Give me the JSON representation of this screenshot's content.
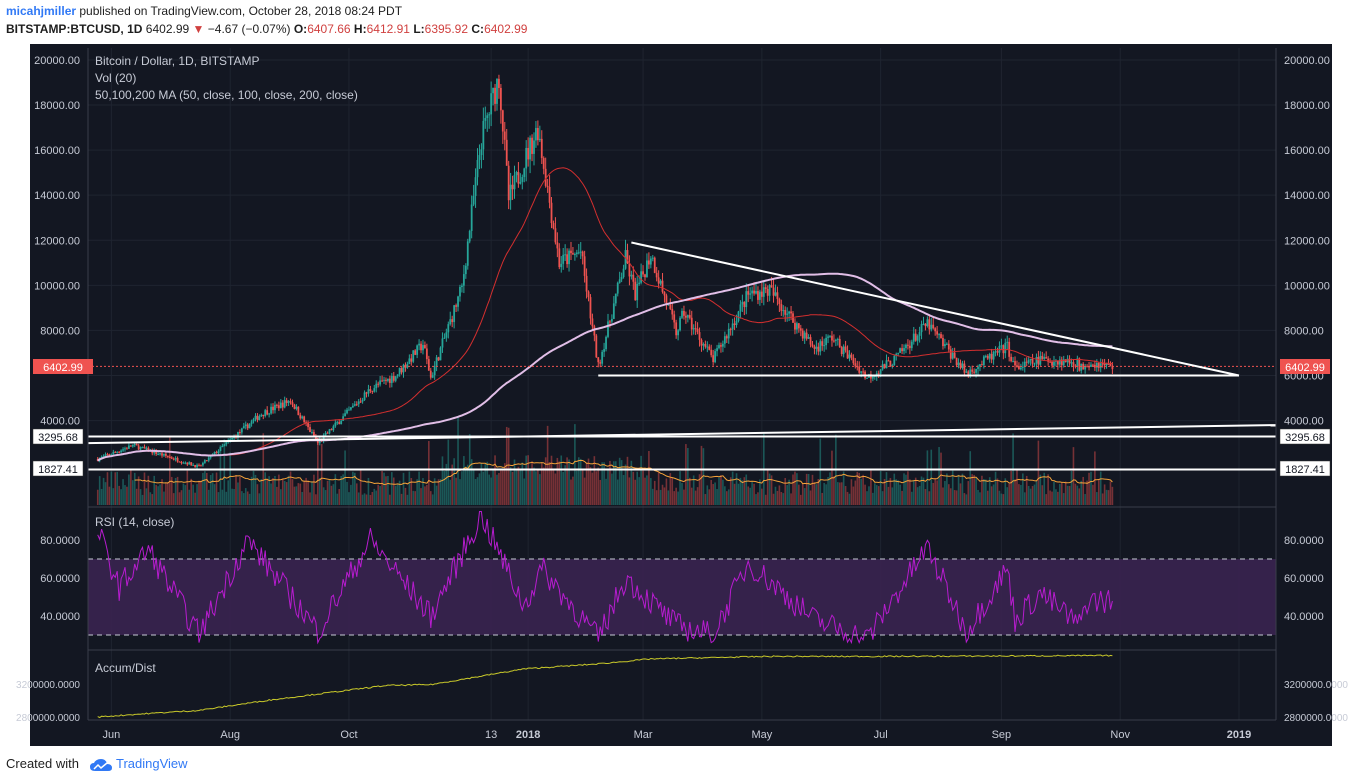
{
  "header": {
    "user": "micahjmiller",
    "published_text": "published on TradingView.com, October 28, 2018 08:24 PDT",
    "symbol": "BITSTAMP:BTCUSD, 1D",
    "last": "6402.99",
    "change": "−4.67 (−0.07%)",
    "o_label": "O:",
    "o": "6407.66",
    "h_label": "H:",
    "h": "6412.91",
    "l_label": "L:",
    "l": "6395.92",
    "c_label": "C:",
    "c": "6402.99"
  },
  "footer": {
    "created_with": "Created with",
    "brand": "TradingView"
  },
  "colors": {
    "background": "#131722",
    "up": "#26a69a",
    "down": "#ef5350",
    "ma50": "#d32f2f",
    "ma200": "#e1bee7",
    "rsi": "#b71ccf",
    "rsi_band": "#3a2450",
    "adl": "#c9c92a",
    "vol_ma": "#f5a33a",
    "trendline": "#ffffff"
  },
  "chart_data": [
    {
      "type": "candlestick",
      "title": "Bitcoin / Dollar, 1D, BITSTAMP",
      "indicators": [
        "Vol (20)",
        "50,100,200 MA (50, close, 100, close, 200, close)"
      ],
      "x_ticks": [
        "Jun",
        "Aug",
        "Oct",
        "13",
        "2018",
        "Mar",
        "May",
        "Jul",
        "Sep",
        "Nov",
        "2019"
      ],
      "y_ticks": [
        "20000.00",
        "18000.00",
        "16000.00",
        "14000.00",
        "12000.00",
        "10000.00",
        "8000.00",
        "6000.00",
        "4000.00"
      ],
      "ylim": [
        1200,
        20600
      ],
      "last_price_label": "6402.99",
      "level_labels": [
        "3295.68",
        "1827.41"
      ],
      "price_anchors": [
        {
          "date": "2017-05-25",
          "price": 2300
        },
        {
          "date": "2017-06-12",
          "price": 2900
        },
        {
          "date": "2017-07-16",
          "price": 1950
        },
        {
          "date": "2017-08-17",
          "price": 4300
        },
        {
          "date": "2017-09-01",
          "price": 4900
        },
        {
          "date": "2017-09-15",
          "price": 3000
        },
        {
          "date": "2017-10-12",
          "price": 5400
        },
        {
          "date": "2017-10-25",
          "price": 6000
        },
        {
          "date": "2017-11-08",
          "price": 7400
        },
        {
          "date": "2017-11-12",
          "price": 5900
        },
        {
          "date": "2017-11-28",
          "price": 9900
        },
        {
          "date": "2017-12-08",
          "price": 16500
        },
        {
          "date": "2017-12-17",
          "price": 19300
        },
        {
          "date": "2017-12-22",
          "price": 13800
        },
        {
          "date": "2018-01-06",
          "price": 17000
        },
        {
          "date": "2018-01-17",
          "price": 11000
        },
        {
          "date": "2018-01-28",
          "price": 11500
        },
        {
          "date": "2018-02-06",
          "price": 6400
        },
        {
          "date": "2018-02-20",
          "price": 11200
        },
        {
          "date": "2018-02-25",
          "price": 9600
        },
        {
          "date": "2018-03-05",
          "price": 11400
        },
        {
          "date": "2018-03-18",
          "price": 7900
        },
        {
          "date": "2018-03-22",
          "price": 8800
        },
        {
          "date": "2018-04-06",
          "price": 6700
        },
        {
          "date": "2018-04-24",
          "price": 9600
        },
        {
          "date": "2018-05-05",
          "price": 9800
        },
        {
          "date": "2018-05-28",
          "price": 7200
        },
        {
          "date": "2018-06-06",
          "price": 7700
        },
        {
          "date": "2018-06-24",
          "price": 5900
        },
        {
          "date": "2018-07-08",
          "price": 6700
        },
        {
          "date": "2018-07-25",
          "price": 8300
        },
        {
          "date": "2018-08-14",
          "price": 6100
        },
        {
          "date": "2018-09-04",
          "price": 7300
        },
        {
          "date": "2018-09-08",
          "price": 6300
        },
        {
          "date": "2018-09-21",
          "price": 6700
        },
        {
          "date": "2018-10-10",
          "price": 6600
        },
        {
          "date": "2018-10-11",
          "price": 6250
        },
        {
          "date": "2018-10-15",
          "price": 6600
        },
        {
          "date": "2018-10-28",
          "price": 6403
        }
      ],
      "trendlines": [
        {
          "from": {
            "date": "2018-02-23",
            "price": 11900
          },
          "to": {
            "date": "2019-01-01",
            "price": 6000
          }
        },
        {
          "from": {
            "date": "2018-02-06",
            "price": 6000
          },
          "to": {
            "date": "2019-01-01",
            "price": 6000
          }
        },
        {
          "from": {
            "date": "2017-05-20",
            "price": 3000
          },
          "to": {
            "date": "2019-01-20",
            "price": 3800
          }
        },
        {
          "from": {
            "date": "2017-05-20",
            "price": 3295.68
          },
          "to": {
            "date": "2019-01-20",
            "price": 3295.68
          }
        },
        {
          "from": {
            "date": "2017-05-20",
            "price": 1827.41
          },
          "to": {
            "date": "2019-01-20",
            "price": 1827.41
          }
        }
      ]
    },
    {
      "type": "line",
      "title": "RSI (14, close)",
      "y_ticks": [
        "80.0000",
        "60.0000",
        "40.0000"
      ],
      "ylim": [
        25,
        98
      ],
      "band": [
        30,
        70
      ],
      "anchors": [
        {
          "date": "2017-05-25",
          "v": 85
        },
        {
          "date": "2017-06-05",
          "v": 55
        },
        {
          "date": "2017-06-20",
          "v": 75
        },
        {
          "date": "2017-07-16",
          "v": 30
        },
        {
          "date": "2017-08-10",
          "v": 80
        },
        {
          "date": "2017-09-15",
          "v": 32
        },
        {
          "date": "2017-10-12",
          "v": 80
        },
        {
          "date": "2017-11-12",
          "v": 40
        },
        {
          "date": "2017-12-08",
          "v": 93
        },
        {
          "date": "2017-12-30",
          "v": 45
        },
        {
          "date": "2018-01-08",
          "v": 65
        },
        {
          "date": "2018-02-06",
          "v": 28
        },
        {
          "date": "2018-02-20",
          "v": 60
        },
        {
          "date": "2018-03-18",
          "v": 35
        },
        {
          "date": "2018-04-06",
          "v": 30
        },
        {
          "date": "2018-04-24",
          "v": 68
        },
        {
          "date": "2018-05-28",
          "v": 38
        },
        {
          "date": "2018-06-24",
          "v": 28
        },
        {
          "date": "2018-07-25",
          "v": 76
        },
        {
          "date": "2018-08-14",
          "v": 32
        },
        {
          "date": "2018-09-04",
          "v": 65
        },
        {
          "date": "2018-09-08",
          "v": 38
        },
        {
          "date": "2018-09-21",
          "v": 52
        },
        {
          "date": "2018-10-11",
          "v": 35
        },
        {
          "date": "2018-10-15",
          "v": 48
        },
        {
          "date": "2018-10-28",
          "v": 48
        }
      ]
    },
    {
      "type": "line",
      "title": "Accum/Dist",
      "y_ticks": [
        "3200000.0000",
        "2800000.0000"
      ],
      "ylim": [
        2780000,
        3600000
      ],
      "anchors": [
        {
          "date": "2017-05-25",
          "v": 2800000
        },
        {
          "date": "2017-06-12",
          "v": 2830000
        },
        {
          "date": "2017-07-16",
          "v": 2880000
        },
        {
          "date": "2017-08-20",
          "v": 3000000
        },
        {
          "date": "2017-10-20",
          "v": 3180000
        },
        {
          "date": "2017-11-12",
          "v": 3190000
        },
        {
          "date": "2017-12-30",
          "v": 3380000
        },
        {
          "date": "2018-02-06",
          "v": 3440000
        },
        {
          "date": "2018-03-05",
          "v": 3500000
        },
        {
          "date": "2018-05-05",
          "v": 3530000
        },
        {
          "date": "2018-07-01",
          "v": 3530000
        },
        {
          "date": "2018-09-01",
          "v": 3535000
        },
        {
          "date": "2018-10-28",
          "v": 3540000
        }
      ]
    }
  ]
}
